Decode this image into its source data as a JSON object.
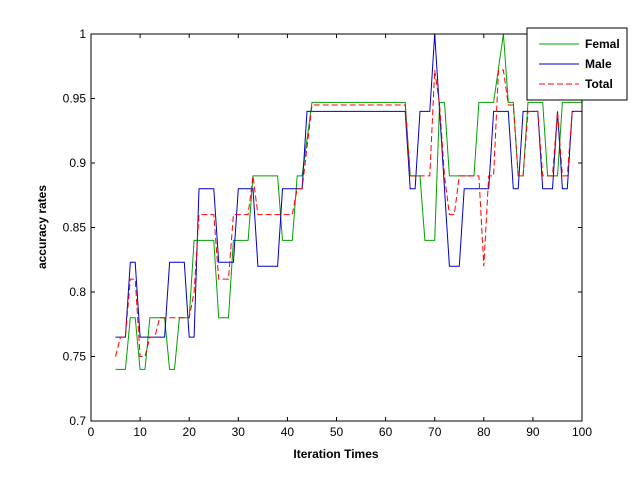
{
  "chart_data": {
    "type": "line",
    "title": "",
    "xlabel": "Iteration Times",
    "ylabel": "accuracy rates",
    "xlim": [
      0,
      100
    ],
    "ylim": [
      0.7,
      1
    ],
    "xticks": [
      "0",
      "10",
      "20",
      "30",
      "40",
      "50",
      "60",
      "70",
      "80",
      "90",
      "100"
    ],
    "yticks": [
      "0.7",
      "0.75",
      "0.8",
      "0.85",
      "0.9",
      "0.95",
      "1"
    ],
    "grid": false,
    "legend": "top-right",
    "colors": {
      "axes": "#000000",
      "background": "#ffffff"
    },
    "series": [
      {
        "name": "Female",
        "legend_text": "Femal",
        "color": "#00a000",
        "dash": "solid",
        "points": [
          [
            5,
            0.74
          ],
          [
            7,
            0.74
          ],
          [
            8,
            0.78
          ],
          [
            9,
            0.78
          ],
          [
            10,
            0.74
          ],
          [
            11,
            0.74
          ],
          [
            12,
            0.78
          ],
          [
            15,
            0.78
          ],
          [
            16,
            0.74
          ],
          [
            17,
            0.74
          ],
          [
            18,
            0.78
          ],
          [
            20,
            0.78
          ],
          [
            21,
            0.84
          ],
          [
            25,
            0.84
          ],
          [
            26,
            0.78
          ],
          [
            28,
            0.78
          ],
          [
            29,
            0.84
          ],
          [
            32,
            0.84
          ],
          [
            33,
            0.89
          ],
          [
            38,
            0.89
          ],
          [
            39,
            0.84
          ],
          [
            41,
            0.84
          ],
          [
            42,
            0.89
          ],
          [
            43,
            0.89
          ],
          [
            45,
            0.947
          ],
          [
            64,
            0.947
          ],
          [
            65,
            0.89
          ],
          [
            67,
            0.89
          ],
          [
            68,
            0.84
          ],
          [
            70,
            0.84
          ],
          [
            71,
            0.947
          ],
          [
            72,
            0.947
          ],
          [
            73,
            0.89
          ],
          [
            78,
            0.89
          ],
          [
            79,
            0.947
          ],
          [
            82,
            0.947
          ],
          [
            84,
            1
          ],
          [
            85,
            0.947
          ],
          [
            86,
            0.947
          ],
          [
            87,
            0.89
          ],
          [
            88,
            0.89
          ],
          [
            89,
            0.947
          ],
          [
            92,
            0.947
          ],
          [
            93,
            0.89
          ],
          [
            95,
            0.89
          ],
          [
            96,
            0.947
          ],
          [
            100,
            0.947
          ]
        ]
      },
      {
        "name": "Male",
        "legend_text": "Male",
        "color": "#0000c8",
        "dash": "solid",
        "points": [
          [
            5,
            0.765
          ],
          [
            7,
            0.765
          ],
          [
            8,
            0.823
          ],
          [
            9,
            0.823
          ],
          [
            10,
            0.765
          ],
          [
            15,
            0.765
          ],
          [
            16,
            0.823
          ],
          [
            19,
            0.823
          ],
          [
            20,
            0.765
          ],
          [
            21,
            0.765
          ],
          [
            22,
            0.88
          ],
          [
            25,
            0.88
          ],
          [
            26,
            0.823
          ],
          [
            29,
            0.823
          ],
          [
            30,
            0.88
          ],
          [
            33,
            0.88
          ],
          [
            34,
            0.82
          ],
          [
            38,
            0.82
          ],
          [
            39,
            0.88
          ],
          [
            43,
            0.88
          ],
          [
            44,
            0.94
          ],
          [
            64,
            0.94
          ],
          [
            65,
            0.88
          ],
          [
            66,
            0.88
          ],
          [
            67,
            0.94
          ],
          [
            69,
            0.94
          ],
          [
            70,
            1
          ],
          [
            71,
            0.94
          ],
          [
            72,
            0.88
          ],
          [
            73,
            0.82
          ],
          [
            75,
            0.82
          ],
          [
            76,
            0.88
          ],
          [
            81,
            0.88
          ],
          [
            82,
            0.94
          ],
          [
            85,
            0.94
          ],
          [
            86,
            0.88
          ],
          [
            87,
            0.88
          ],
          [
            88,
            0.94
          ],
          [
            91,
            0.94
          ],
          [
            92,
            0.88
          ],
          [
            94,
            0.88
          ],
          [
            95,
            0.94
          ],
          [
            96,
            0.88
          ],
          [
            97,
            0.88
          ],
          [
            98,
            0.94
          ],
          [
            100,
            0.94
          ]
        ]
      },
      {
        "name": "Total",
        "legend_text": "Total",
        "color": "#ff0000",
        "dash": "dashed",
        "points": [
          [
            5,
            0.75
          ],
          [
            6,
            0.765
          ],
          [
            7,
            0.765
          ],
          [
            8,
            0.81
          ],
          [
            9,
            0.81
          ],
          [
            10,
            0.75
          ],
          [
            11,
            0.75
          ],
          [
            12,
            0.765
          ],
          [
            13,
            0.765
          ],
          [
            14,
            0.78
          ],
          [
            16,
            0.78
          ],
          [
            17,
            0.78
          ],
          [
            18,
            0.78
          ],
          [
            19,
            0.78
          ],
          [
            20,
            0.78
          ],
          [
            21,
            0.8
          ],
          [
            22,
            0.86
          ],
          [
            25,
            0.86
          ],
          [
            26,
            0.81
          ],
          [
            28,
            0.81
          ],
          [
            29,
            0.86
          ],
          [
            32,
            0.86
          ],
          [
            33,
            0.89
          ],
          [
            34,
            0.86
          ],
          [
            41,
            0.86
          ],
          [
            42,
            0.88
          ],
          [
            43,
            0.88
          ],
          [
            45,
            0.945
          ],
          [
            64,
            0.945
          ],
          [
            65,
            0.89
          ],
          [
            69,
            0.89
          ],
          [
            70,
            0.972
          ],
          [
            71,
            0.945
          ],
          [
            72,
            0.89
          ],
          [
            73,
            0.86
          ],
          [
            74,
            0.86
          ],
          [
            75,
            0.89
          ],
          [
            79,
            0.89
          ],
          [
            80,
            0.82
          ],
          [
            81,
            0.89
          ],
          [
            82,
            0.89
          ],
          [
            83,
            0.972
          ],
          [
            84,
            0.972
          ],
          [
            85,
            0.945
          ],
          [
            86,
            0.945
          ],
          [
            87,
            0.89
          ],
          [
            88,
            0.89
          ],
          [
            89,
            0.94
          ],
          [
            91,
            0.94
          ],
          [
            92,
            0.89
          ],
          [
            93,
            0.89
          ],
          [
            94,
            0.89
          ],
          [
            95,
            0.94
          ],
          [
            96,
            0.89
          ],
          [
            97,
            0.89
          ],
          [
            98,
            0.94
          ],
          [
            100,
            0.94
          ]
        ]
      }
    ]
  }
}
